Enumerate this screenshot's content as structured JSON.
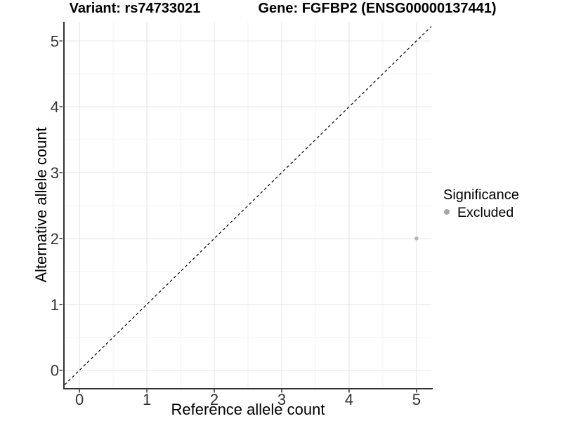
{
  "header": {
    "variant_title": "Variant: rs74733021",
    "gene_title": "Gene: FGFBP2 (ENSG00000137441)"
  },
  "axes": {
    "x_label": "Reference allele count",
    "y_label": "Alternative allele count"
  },
  "legend": {
    "title": "Significance",
    "entries": [
      {
        "label": "Excluded",
        "color": "#a6a6a6"
      }
    ]
  },
  "chart_data": {
    "type": "scatter",
    "title": "Variant: rs74733021 | Gene: FGFBP2 (ENSG00000137441)",
    "xlabel": "Reference allele count",
    "ylabel": "Alternative allele count",
    "xlim": [
      -0.22,
      5.22
    ],
    "ylim": [
      -0.27,
      5.28
    ],
    "x_ticks": [
      0,
      1,
      2,
      3,
      4,
      5
    ],
    "y_ticks": [
      0,
      1,
      2,
      3,
      4,
      5
    ],
    "minor_gridlines": [
      0.5,
      1.5,
      2.5,
      3.5,
      4.5
    ],
    "grid": "on",
    "legend_position": "right",
    "series": [
      {
        "name": "Excluded",
        "color": "#b5b5b5",
        "points": [
          {
            "x": 5,
            "y": 2
          }
        ]
      }
    ],
    "reference_line": {
      "type": "identity y=x",
      "style": "dashed",
      "color": "#000000",
      "from": [
        -0.22,
        -0.22
      ],
      "to": [
        5.22,
        5.22
      ]
    }
  },
  "colors": {
    "background": "#ffffff",
    "grid_major": "#e4e4e4",
    "grid_minor": "#f2f2f2",
    "axis_line": "#333333",
    "tick_text": "#333333",
    "point": "#b5b5b5",
    "legend_dot": "#a6a6a6"
  }
}
